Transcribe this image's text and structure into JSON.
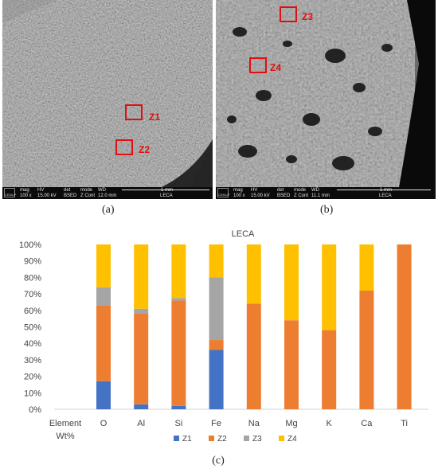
{
  "panels": {
    "a": {
      "caption": "(a)",
      "zones": [
        "Z1",
        "Z2"
      ],
      "databar": {
        "mag_label": "mag",
        "mag": "100 x",
        "hv_label": "HV",
        "hv": "15.00 kV",
        "det_label": "det",
        "det": "BSED",
        "mode_label": "mode",
        "mode": "Z Cont",
        "wd_label": "WD",
        "wd": "12.0 mm",
        "scale": "1 mm",
        "name": "LECA",
        "logo": "CEMUP"
      }
    },
    "b": {
      "caption": "(b)",
      "zones": [
        "Z3",
        "Z4"
      ],
      "databar": {
        "mag_label": "mag",
        "mag": "100 x",
        "hv_label": "HV",
        "hv": "15.00 kV",
        "det_label": "det",
        "det": "BSED",
        "mode_label": "mode",
        "mode": "Z Cont",
        "wd_label": "WD",
        "wd": "11.1 mm",
        "scale": "1 mm",
        "name": "LECA",
        "logo": "CEMUP"
      }
    },
    "c": {
      "caption": "(c)"
    }
  },
  "colors": {
    "Z1": "#4472c4",
    "Z2": "#ed7d31",
    "Z3": "#a5a5a5",
    "Z4": "#ffc000",
    "zone_box": "#e01010"
  },
  "chart_data": {
    "type": "bar",
    "stacked": true,
    "title": "LECA",
    "category_header": [
      "Element",
      "Wt%"
    ],
    "categories": [
      "O",
      "Al",
      "Si",
      "Fe",
      "Na",
      "Mg",
      "K",
      "Ca",
      "Ti"
    ],
    "series": [
      {
        "name": "Z1",
        "values": [
          17,
          3,
          2,
          36,
          0,
          0,
          0,
          0,
          0
        ]
      },
      {
        "name": "Z2",
        "values": [
          46,
          55,
          64,
          6,
          64,
          54,
          48,
          72,
          100
        ]
      },
      {
        "name": "Z3",
        "values": [
          11,
          3,
          1.5,
          38,
          0,
          0,
          0,
          0,
          0
        ]
      },
      {
        "name": "Z4",
        "values": [
          26,
          39,
          32.5,
          20,
          36,
          46,
          52,
          28,
          0
        ]
      }
    ],
    "ylim": [
      0,
      100
    ],
    "yticks": [
      "0%",
      "10%",
      "20%",
      "30%",
      "40%",
      "50%",
      "60%",
      "70%",
      "80%",
      "90%",
      "100%"
    ],
    "grid": false,
    "legend_position": "bottom"
  }
}
